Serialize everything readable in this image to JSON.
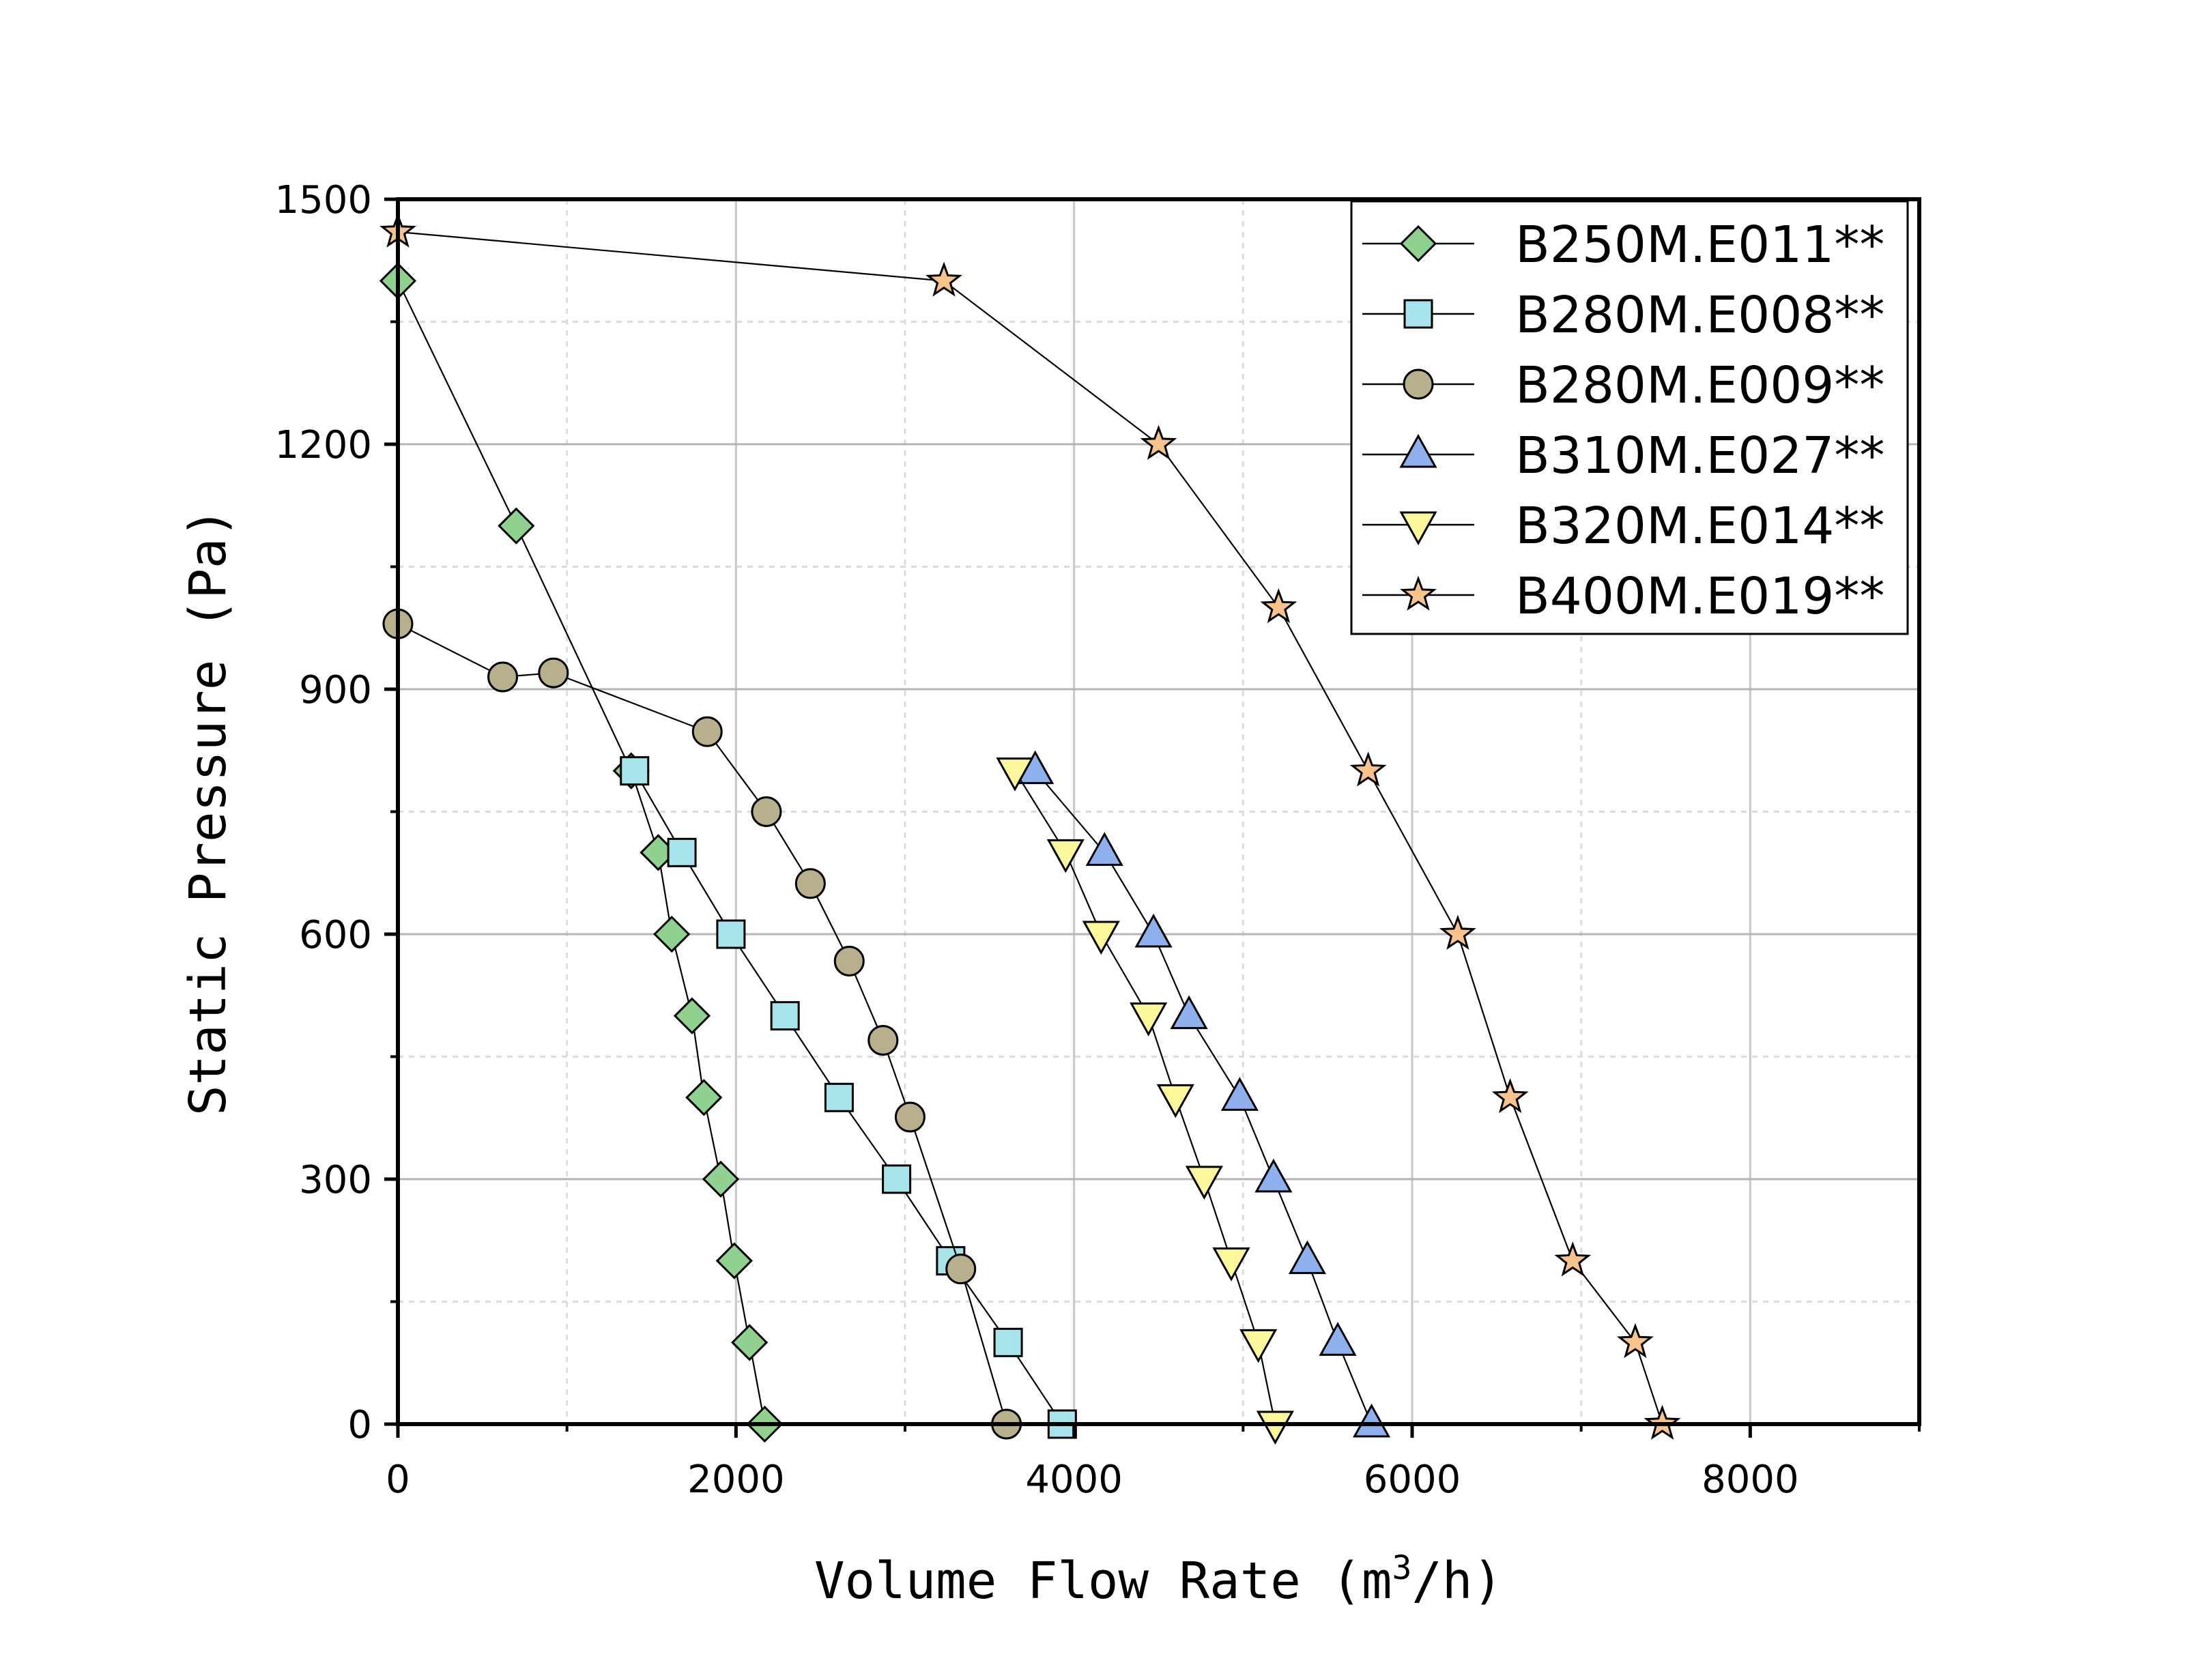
{
  "chart_data": {
    "type": "line",
    "xlabel": "Volume Flow Rate (m",
    "xlabel_sup": "3",
    "xlabel_tail": "/h)",
    "ylabel": "Static Pressure (Pa)",
    "xlim": [
      0,
      9000
    ],
    "ylim": [
      0,
      1500
    ],
    "xticks": [
      0,
      2000,
      4000,
      6000,
      8000
    ],
    "xtick_labels": [
      "0",
      "2000",
      "4000",
      "6000",
      "8000"
    ],
    "yticks": [
      0,
      300,
      600,
      900,
      1200,
      1500
    ],
    "ytick_labels": [
      "0",
      "300",
      "600",
      "900",
      "1200",
      "1500"
    ],
    "grid": true,
    "legend_position": "top-right",
    "series": [
      {
        "name": "B250M.E011**",
        "marker": "diamond",
        "color": "#8fd18f",
        "x": [
          0,
          700,
          1380,
          1540,
          1620,
          1740,
          1810,
          1910,
          1990,
          2080,
          2170
        ],
        "y": [
          1400,
          1100,
          800,
          700,
          600,
          500,
          400,
          300,
          200,
          100,
          0
        ]
      },
      {
        "name": "B280M.E008**",
        "marker": "square",
        "color": "#a8e4ec",
        "x": [
          1400,
          1680,
          1970,
          2290,
          2610,
          2950,
          3270,
          3610,
          3930
        ],
        "y": [
          800,
          700,
          600,
          500,
          400,
          300,
          200,
          100,
          0
        ]
      },
      {
        "name": "B280M.E009**",
        "marker": "circle",
        "color": "#b8b08c",
        "x": [
          0,
          620,
          920,
          1830,
          2180,
          2440,
          2670,
          2870,
          3030,
          3330,
          3600
        ],
        "y": [
          980,
          915,
          920,
          848,
          750,
          662,
          567,
          470,
          376,
          190,
          0
        ]
      },
      {
        "name": "B310M.E027**",
        "marker": "triangle-up",
        "color": "#8fb0ee",
        "x": [
          3770,
          4180,
          4470,
          4680,
          4980,
          5180,
          5380,
          5560,
          5760
        ],
        "y": [
          800,
          700,
          600,
          500,
          400,
          300,
          200,
          100,
          0
        ]
      },
      {
        "name": "B320M.E014**",
        "marker": "triangle-down",
        "color": "#fbf79a",
        "x": [
          3650,
          3950,
          4160,
          4440,
          4600,
          4770,
          4930,
          5090,
          5190
        ],
        "y": [
          800,
          700,
          600,
          500,
          400,
          300,
          200,
          100,
          0
        ]
      },
      {
        "name": "B400M.E019**",
        "marker": "star",
        "color": "#f9c48c",
        "x": [
          0,
          3230,
          4500,
          5210,
          5740,
          6270,
          6580,
          6950,
          7320,
          7480
        ],
        "y": [
          1460,
          1400,
          1200,
          1000,
          800,
          600,
          400,
          200,
          100,
          0
        ]
      }
    ]
  }
}
